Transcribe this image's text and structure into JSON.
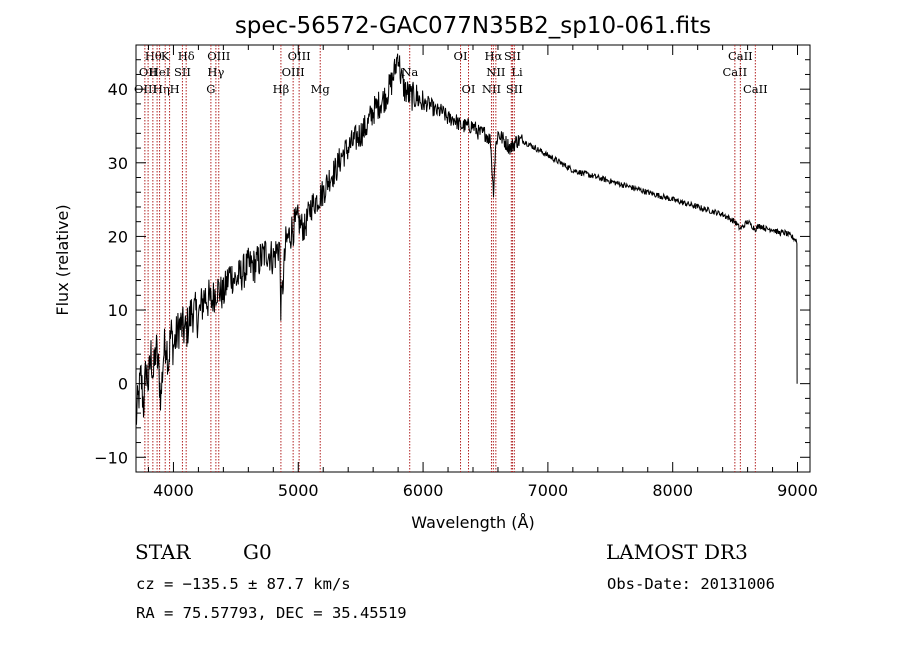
{
  "chart_data": {
    "type": "line",
    "title": "spec-56572-GAC077N35B2_sp10-061.fits",
    "xlabel": "Wavelength (Å)",
    "ylabel": "Flux (relative)",
    "xlim": [
      3700,
      9100
    ],
    "ylim": [
      -12,
      46
    ],
    "xticks": [
      4000,
      5000,
      6000,
      7000,
      8000,
      9000
    ],
    "xtick_labels": [
      "4000",
      "5000",
      "6000",
      "7000",
      "8000",
      "9000"
    ],
    "yticks": [
      -10,
      0,
      10,
      20,
      30,
      40
    ],
    "ytick_labels": [
      "−10",
      "0",
      "10",
      "20",
      "30",
      "40"
    ],
    "series": [
      {
        "name": "flux",
        "x": [
          3700,
          3720,
          3740,
          3760,
          3780,
          3800,
          3820,
          3840,
          3860,
          3880,
          3900,
          3920,
          3940,
          3960,
          3980,
          4000,
          4050,
          4100,
          4150,
          4200,
          4250,
          4300,
          4350,
          4400,
          4450,
          4500,
          4550,
          4600,
          4650,
          4700,
          4750,
          4800,
          4850,
          4861,
          4900,
          4950,
          5000,
          5050,
          5100,
          5150,
          5200,
          5250,
          5300,
          5350,
          5400,
          5450,
          5500,
          5550,
          5600,
          5650,
          5700,
          5750,
          5780,
          5800,
          5820,
          5850,
          5900,
          5950,
          6000,
          6050,
          6100,
          6150,
          6200,
          6250,
          6300,
          6350,
          6400,
          6450,
          6500,
          6540,
          6563,
          6580,
          6600,
          6650,
          6700,
          6750,
          6800,
          6900,
          7000,
          7100,
          7200,
          7300,
          7400,
          7500,
          7600,
          7700,
          7800,
          7900,
          8000,
          8100,
          8200,
          8300,
          8400,
          8498,
          8542,
          8600,
          8662,
          8700,
          8750,
          8800,
          8850,
          8900,
          8950,
          8990,
          9000
        ],
        "y": [
          -5,
          -2,
          1,
          -3,
          2,
          0,
          4,
          1,
          5,
          2,
          -2,
          4,
          6,
          3,
          7,
          5,
          8,
          7,
          10,
          9,
          12,
          11,
          13,
          12,
          15,
          14,
          15,
          16,
          16,
          17,
          18,
          17,
          19,
          10,
          19,
          21,
          22,
          21,
          24,
          25,
          26,
          28,
          29,
          31,
          32,
          33,
          34,
          35,
          37,
          38,
          39,
          41,
          43,
          45,
          42,
          40,
          39,
          39,
          38,
          38,
          37,
          37,
          36,
          36,
          35,
          35,
          35,
          34,
          34,
          33,
          26,
          32,
          34,
          33,
          32,
          33,
          33,
          32,
          31,
          30,
          29,
          28.5,
          28,
          27.5,
          27,
          26.5,
          26,
          25.5,
          25,
          24.5,
          24,
          23.5,
          23,
          22,
          21,
          22,
          21,
          21.5,
          21,
          21,
          20.5,
          20.5,
          20,
          19.5,
          0
        ]
      }
    ],
    "line_marks": [
      {
        "wavelength": 3771,
        "label": "Hθ",
        "row": 1,
        "align": "left"
      },
      {
        "wavelength": 3797,
        "label": "OII",
        "row": 2,
        "align": "center"
      },
      {
        "wavelength": 3835,
        "label": "Hη",
        "row": 3,
        "align": "left"
      },
      {
        "wavelength": 3869,
        "label": "OIII",
        "row": 3,
        "align": "right"
      },
      {
        "wavelength": 3889,
        "label": "HeI",
        "row": 2,
        "align": "center"
      },
      {
        "wavelength": 3934,
        "label": "K",
        "row": 1,
        "align": "center"
      },
      {
        "wavelength": 3969,
        "label": "H",
        "row": 3,
        "align": "left"
      },
      {
        "wavelength": 4072,
        "label": "SII",
        "row": 2,
        "align": "center"
      },
      {
        "wavelength": 4102,
        "label": "Hδ",
        "row": 1,
        "align": "center"
      },
      {
        "wavelength": 4300,
        "label": "G",
        "row": 3,
        "align": "center"
      },
      {
        "wavelength": 4340,
        "label": "Hγ",
        "row": 2,
        "align": "center"
      },
      {
        "wavelength": 4363,
        "label": "OIII",
        "row": 1,
        "align": "center"
      },
      {
        "wavelength": 4861,
        "label": "Hβ",
        "row": 3,
        "align": "center"
      },
      {
        "wavelength": 4959,
        "label": "OIII",
        "row": 2,
        "align": "center"
      },
      {
        "wavelength": 5007,
        "label": "OIII",
        "row": 1,
        "align": "center"
      },
      {
        "wavelength": 5176,
        "label": "Mg",
        "row": 3,
        "align": "center"
      },
      {
        "wavelength": 5893,
        "label": "Na",
        "row": 2,
        "align": "center"
      },
      {
        "wavelength": 6300,
        "label": "OI",
        "row": 1,
        "align": "center"
      },
      {
        "wavelength": 6364,
        "label": "OI",
        "row": 3,
        "align": "center"
      },
      {
        "wavelength": 6548,
        "label": "NII",
        "row": 3,
        "align": "center"
      },
      {
        "wavelength": 6563,
        "label": "Hα",
        "row": 1,
        "align": "center"
      },
      {
        "wavelength": 6583,
        "label": "NII",
        "row": 2,
        "align": "center"
      },
      {
        "wavelength": 6707,
        "label": "Li",
        "row": 2,
        "align": "left"
      },
      {
        "wavelength": 6716,
        "label": "SII",
        "row": 1,
        "align": "center"
      },
      {
        "wavelength": 6731,
        "label": "SII",
        "row": 3,
        "align": "center"
      },
      {
        "wavelength": 8498,
        "label": "CaII",
        "row": 2,
        "align": "center"
      },
      {
        "wavelength": 8542,
        "label": "CaII",
        "row": 1,
        "align": "center"
      },
      {
        "wavelength": 8662,
        "label": "CaII",
        "row": 3,
        "align": "center"
      }
    ]
  },
  "footer": {
    "class": "STAR",
    "subclass": "G0",
    "survey": "LAMOST DR3",
    "cz": "cz = −135.5 ± 87.7 km/s",
    "obs_date": "Obs-Date: 20131006",
    "radec": "RA =  75.57793, DEC =  35.45519"
  },
  "colors": {
    "spectrum": "#000000",
    "line_marker": "#b22222",
    "frame": "#000000"
  }
}
